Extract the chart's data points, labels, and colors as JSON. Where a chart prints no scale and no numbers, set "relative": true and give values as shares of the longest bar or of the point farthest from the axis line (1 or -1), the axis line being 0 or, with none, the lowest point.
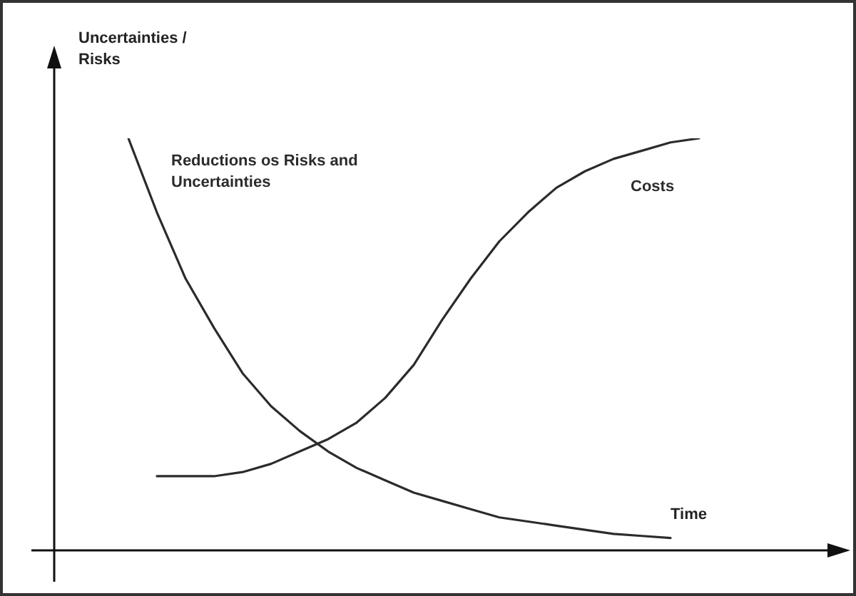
{
  "chart_data": {
    "type": "line",
    "relative": true,
    "xlabel": "Time",
    "ylabel": "Uncertainties / Risks",
    "legend": false,
    "grid": false,
    "marker": "none",
    "line_style": "solid",
    "tick_labels": false,
    "categories": [
      null,
      null,
      null,
      null,
      null,
      null,
      null,
      null,
      null,
      null,
      null,
      null,
      null,
      null,
      null,
      null,
      null,
      null,
      null,
      null,
      null
    ],
    "series": [
      {
        "name": "Reductions os Risks and Uncertainties",
        "color": "#2b2b2b",
        "values": [
          1,
          0.82,
          0.66,
          0.54,
          0.43,
          0.35,
          0.29,
          0.24,
          0.2,
          0.17,
          0.14,
          0.12,
          0.1,
          0.08,
          0.07,
          0.06,
          0.05,
          0.04,
          0.035,
          0.03,
          null
        ]
      },
      {
        "name": "Costs",
        "color": "#2b2b2b",
        "values": [
          null,
          0.18,
          0.18,
          0.18,
          0.19,
          0.21,
          0.24,
          0.27,
          0.31,
          0.37,
          0.45,
          0.56,
          0.66,
          0.75,
          0.82,
          0.88,
          0.92,
          0.95,
          0.97,
          0.99,
          1
        ]
      }
    ]
  }
}
